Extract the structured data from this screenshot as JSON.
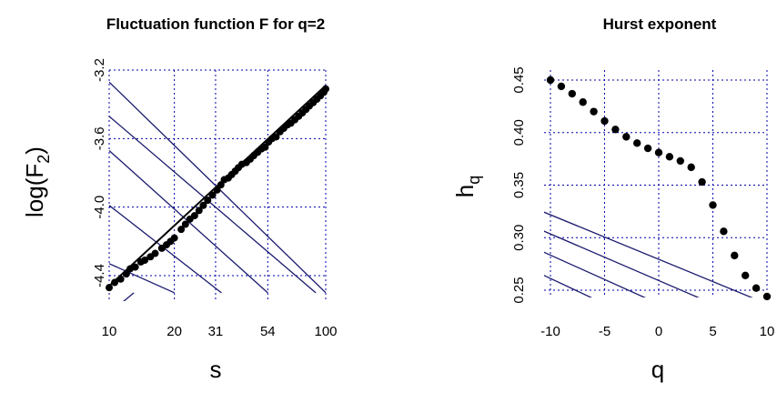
{
  "chart_data": [
    {
      "type": "scatter",
      "title": "Fluctuation function F for q=2",
      "xlabel": "s",
      "ylabel_base": "log(F",
      "ylabel_sub": "2",
      "ylabel_end": ")",
      "x_scale": "log",
      "xlim": [
        10,
        100
      ],
      "ylim": [
        -4.5,
        -3.2
      ],
      "x_ticks": [
        10,
        20,
        31,
        54,
        100
      ],
      "x_tick_labels": [
        "10",
        "20",
        "31",
        "54",
        "100"
      ],
      "y_ticks": [
        -4.4,
        -4.0,
        -3.6,
        -3.2
      ],
      "y_tick_labels": [
        "-4.4",
        "-4.0",
        "-3.6",
        "-3.2"
      ],
      "grid": true,
      "fit_line": {
        "x": [
          10,
          100
        ],
        "y": [
          -4.46,
          -3.29
        ]
      },
      "reference_lines": [
        {
          "x": [
            10,
            100
          ],
          "y": [
            -3.27,
            -4.5
          ]
        },
        {
          "x": [
            10,
            90
          ],
          "y": [
            -3.47,
            -4.5
          ]
        },
        {
          "x": [
            10,
            54
          ],
          "y": [
            -3.67,
            -4.5
          ]
        },
        {
          "x": [
            10,
            33
          ],
          "y": [
            -3.99,
            -4.5
          ]
        },
        {
          "x": [
            10,
            20
          ],
          "y": [
            -4.33,
            -4.5
          ]
        },
        {
          "x": [
            10,
            13
          ],
          "y": [
            -4.62,
            -4.5
          ]
        }
      ],
      "series": [
        {
          "x": [
            10.0,
            10.6,
            11.3,
            12.0,
            12.5,
            13.2,
            14.0,
            14.6,
            15.5,
            16.3,
            17.5,
            18.4,
            19.2,
            20.0,
            21.5,
            22.5,
            23.6,
            24.8,
            26.0,
            27.2,
            28.5,
            30.0,
            31.5,
            32.8,
            34.0,
            35.5,
            36.8,
            38.2,
            39.5,
            41.0,
            43.0,
            44.8,
            46.5,
            48.5,
            50.5,
            52.5,
            54.5,
            56.5,
            59.0,
            61.5,
            64.0,
            66.5,
            69.0,
            72.0,
            75.0,
            78.0,
            81.0,
            84.0,
            87.5,
            91.0,
            94.5,
            98.0,
            100.0
          ],
          "y": [
            -4.47,
            -4.44,
            -4.42,
            -4.39,
            -4.36,
            -4.35,
            -4.32,
            -4.31,
            -4.29,
            -4.27,
            -4.24,
            -4.22,
            -4.2,
            -4.18,
            -4.13,
            -4.1,
            -4.07,
            -4.05,
            -4.02,
            -3.99,
            -3.96,
            -3.93,
            -3.9,
            -3.87,
            -3.84,
            -3.83,
            -3.81,
            -3.79,
            -3.77,
            -3.75,
            -3.74,
            -3.72,
            -3.7,
            -3.68,
            -3.66,
            -3.65,
            -3.62,
            -3.6,
            -3.59,
            -3.56,
            -3.54,
            -3.52,
            -3.51,
            -3.49,
            -3.47,
            -3.45,
            -3.43,
            -3.41,
            -3.39,
            -3.37,
            -3.35,
            -3.33,
            -3.31
          ]
        }
      ]
    },
    {
      "type": "scatter",
      "title": "Hurst exponent",
      "xlabel": "q",
      "ylabel_base": "h",
      "ylabel_sub": "q",
      "ylabel_end": "",
      "xlim": [
        -10,
        10
      ],
      "ylim": [
        0.235,
        0.455
      ],
      "x_ticks": [
        -10,
        -5,
        0,
        5,
        10
      ],
      "x_tick_labels": [
        "-10",
        "-5",
        "0",
        "5",
        "10"
      ],
      "y_ticks": [
        0.25,
        0.3,
        0.35,
        0.4,
        0.45
      ],
      "y_tick_labels": [
        "0.25",
        "0.30",
        "0.35",
        "0.40",
        "0.45"
      ],
      "grid": true,
      "reference_lines": [
        {
          "x": [
            -11,
            10
          ],
          "y": [
            0.326,
            0.237
          ]
        },
        {
          "x": [
            -11,
            5
          ],
          "y": [
            0.308,
            0.237
          ]
        },
        {
          "x": [
            -11,
            0
          ],
          "y": [
            0.288,
            0.237
          ]
        },
        {
          "x": [
            -11,
            -5
          ],
          "y": [
            0.266,
            0.237
          ]
        },
        {
          "x": [
            -11,
            -10
          ],
          "y": [
            0.244,
            0.237
          ]
        }
      ],
      "series": [
        {
          "x": [
            -10,
            -9,
            -8,
            -7,
            -6,
            -5,
            -4,
            -3,
            -2,
            -1,
            0,
            1,
            2,
            3,
            4,
            5,
            6,
            7,
            8,
            9,
            10
          ],
          "y": [
            0.45,
            0.444,
            0.437,
            0.429,
            0.42,
            0.411,
            0.403,
            0.396,
            0.39,
            0.385,
            0.381,
            0.377,
            0.373,
            0.367,
            0.353,
            0.331,
            0.306,
            0.283,
            0.264,
            0.252,
            0.244
          ]
        }
      ]
    }
  ]
}
